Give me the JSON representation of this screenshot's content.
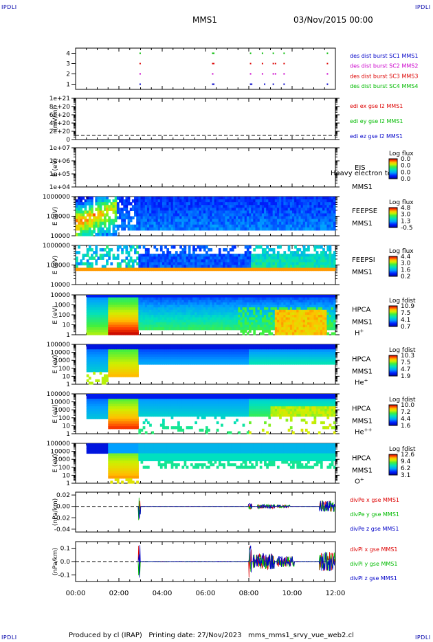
{
  "corners": {
    "tl": "IPDLI",
    "tr": "IPDLI",
    "bl": "IPDLI",
    "br": "IPDLI"
  },
  "header": {
    "spacecraft": "MMS1",
    "date": "03/Nov/2015 00:00"
  },
  "footer": "Produced by cl (IRAP)   Printing date: 27/Nov/2023   mms_mms1_srvy_vue_web2.cl",
  "time_axis": {
    "start_h": 0,
    "end_h": 12,
    "labels": [
      "00:00",
      "02:00",
      "04:00",
      "06:00",
      "08:00",
      "10:00",
      "12:00"
    ]
  },
  "colors": {
    "sc1": "#0000c8",
    "sc2": "#cc00cc",
    "sc3": "#dd0000",
    "sc4": "#00bb00"
  },
  "chart_data": [
    {
      "type": "scatter",
      "id": "burst",
      "yticks": [
        "4",
        "3",
        "2",
        "1"
      ],
      "ylim": [
        0.5,
        4.5
      ],
      "series": [
        {
          "name": "des dist burst SC1 MMS1",
          "color": "#0000c8",
          "y": 1,
          "x": [
            2.95,
            6.3,
            6.35,
            8.05,
            8.1,
            8.7,
            9.1,
            9.6,
            11.6
          ]
        },
        {
          "name": "des dist burst SC2 MMS2",
          "color": "#cc00cc",
          "y": 2,
          "x": [
            2.95,
            6.3,
            8.05,
            8.6,
            9.1,
            9.2,
            9.6,
            11.6
          ]
        },
        {
          "name": "des dist burst SC3 MMS3",
          "color": "#dd0000",
          "y": 3,
          "x": [
            2.95,
            6.3,
            6.35,
            8.05,
            8.6,
            9.1,
            9.2,
            9.6,
            11.6
          ]
        },
        {
          "name": "des dist burst SC4 MMS4",
          "color": "#00bb00",
          "y": 4,
          "x": [
            2.95,
            6.3,
            6.35,
            8.05,
            8.6,
            9.1,
            9.6,
            11.6
          ]
        }
      ]
    },
    {
      "type": "line",
      "id": "edi",
      "ylabel": "(mV/m)",
      "yticks": [
        "1e+21",
        "8e+20",
        "6e+20",
        "4e+20",
        "2e+20",
        "0"
      ],
      "series": [
        {
          "name": "edi ex gse l2 MMS1",
          "color": "#dd0000"
        },
        {
          "name": "edi ey gse l2 MMS1",
          "color": "#00bb00"
        },
        {
          "name": "edi ez gse l2 MMS1",
          "color": "#0000c8"
        }
      ]
    },
    {
      "type": "heatmap",
      "id": "eis",
      "ylabel": "E (eV)",
      "yticks": [
        "1e+07",
        "1e+06",
        "1e+05",
        "1e+04"
      ],
      "instrument": "EIS",
      "spacecraft": "MMS1",
      "overlay_text": "Heavy electron tof",
      "colorbar": {
        "title": "Log flux",
        "ticks": [
          "0.0",
          "0.0",
          "0.0",
          "0.0"
        ]
      }
    },
    {
      "type": "heatmap",
      "id": "feepse",
      "ylabel": "E (eV)",
      "yticks": [
        "1000000",
        "100000",
        "10000"
      ],
      "instrument": "FEEPSE",
      "spacecraft": "MMS1",
      "colorbar": {
        "title": "Log flux",
        "ticks": [
          "4.8",
          "3.0",
          "1.3",
          "-0.5"
        ]
      }
    },
    {
      "type": "heatmap",
      "id": "feepsi",
      "ylabel": "E (eV)",
      "yticks": [
        "1000000",
        "100000",
        "10000"
      ],
      "instrument": "FEEPSI",
      "spacecraft": "MMS1",
      "colorbar": {
        "title": "Log flux",
        "ticks": [
          "4.4",
          "3.0",
          "1.6",
          "0.2"
        ]
      }
    },
    {
      "type": "heatmap",
      "id": "hpca_h",
      "ylabel": "E (eV)",
      "yticks": [
        "10000",
        "1000",
        "100",
        "10",
        "1"
      ],
      "instrument": "HPCA",
      "spacecraft": "MMS1",
      "species": "H",
      "charge": "+",
      "colorbar": {
        "title": "Log fdist",
        "ticks": [
          "10.9",
          "7.5",
          "4.1",
          "0.7"
        ]
      }
    },
    {
      "type": "heatmap",
      "id": "hpca_he",
      "ylabel": "E (eV)",
      "yticks": [
        "100000",
        "10000",
        "1000",
        "100",
        "10",
        "1"
      ],
      "instrument": "HPCA",
      "spacecraft": "MMS1",
      "species": "He",
      "charge": "+",
      "colorbar": {
        "title": "Log fdist",
        "ticks": [
          "10.3",
          "7.5",
          "4.7",
          "1.9"
        ]
      }
    },
    {
      "type": "heatmap",
      "id": "hpca_hepp",
      "ylabel": "E (eV)",
      "yticks": [
        "100000",
        "10000",
        "1000",
        "100",
        "10",
        "1"
      ],
      "instrument": "HPCA",
      "spacecraft": "MMS1",
      "species": "He",
      "charge": "++",
      "colorbar": {
        "title": "Log fdist",
        "ticks": [
          "10.0",
          "7.2",
          "4.4",
          "1.6"
        ]
      }
    },
    {
      "type": "heatmap",
      "id": "hpca_o",
      "ylabel": "E (eV)",
      "yticks": [
        "100000",
        "10000",
        "1000",
        "100",
        "10",
        "1"
      ],
      "instrument": "HPCA",
      "spacecraft": "MMS1",
      "species": "O",
      "charge": "+",
      "colorbar": {
        "title": "Log fdist",
        "ticks": [
          "12.6",
          "9.4",
          "6.2",
          "3.1"
        ]
      }
    },
    {
      "type": "line",
      "id": "divpe",
      "ylabel": "(nPa/km)",
      "yticks": [
        "0.02",
        "0.00",
        "-0.02",
        "-0.04"
      ],
      "ylim": [
        -0.045,
        0.025
      ],
      "series": [
        {
          "name": "divPe x gse MMS1",
          "color": "#dd0000"
        },
        {
          "name": "divPe y gse MMS1",
          "color": "#00bb00"
        },
        {
          "name": "divPe z gse MMS1",
          "color": "#0000c8"
        }
      ]
    },
    {
      "type": "line",
      "id": "divpi",
      "ylabel": "(nPa/km)",
      "yticks": [
        "0.1",
        "0.0",
        "-0.1"
      ],
      "ylim": [
        -0.15,
        0.15
      ],
      "series": [
        {
          "name": "divPi x gse MMS1",
          "color": "#dd0000"
        },
        {
          "name": "divPi y gse MMS1",
          "color": "#00bb00"
        },
        {
          "name": "divPi z gse MMS1",
          "color": "#0000c8"
        }
      ]
    }
  ]
}
